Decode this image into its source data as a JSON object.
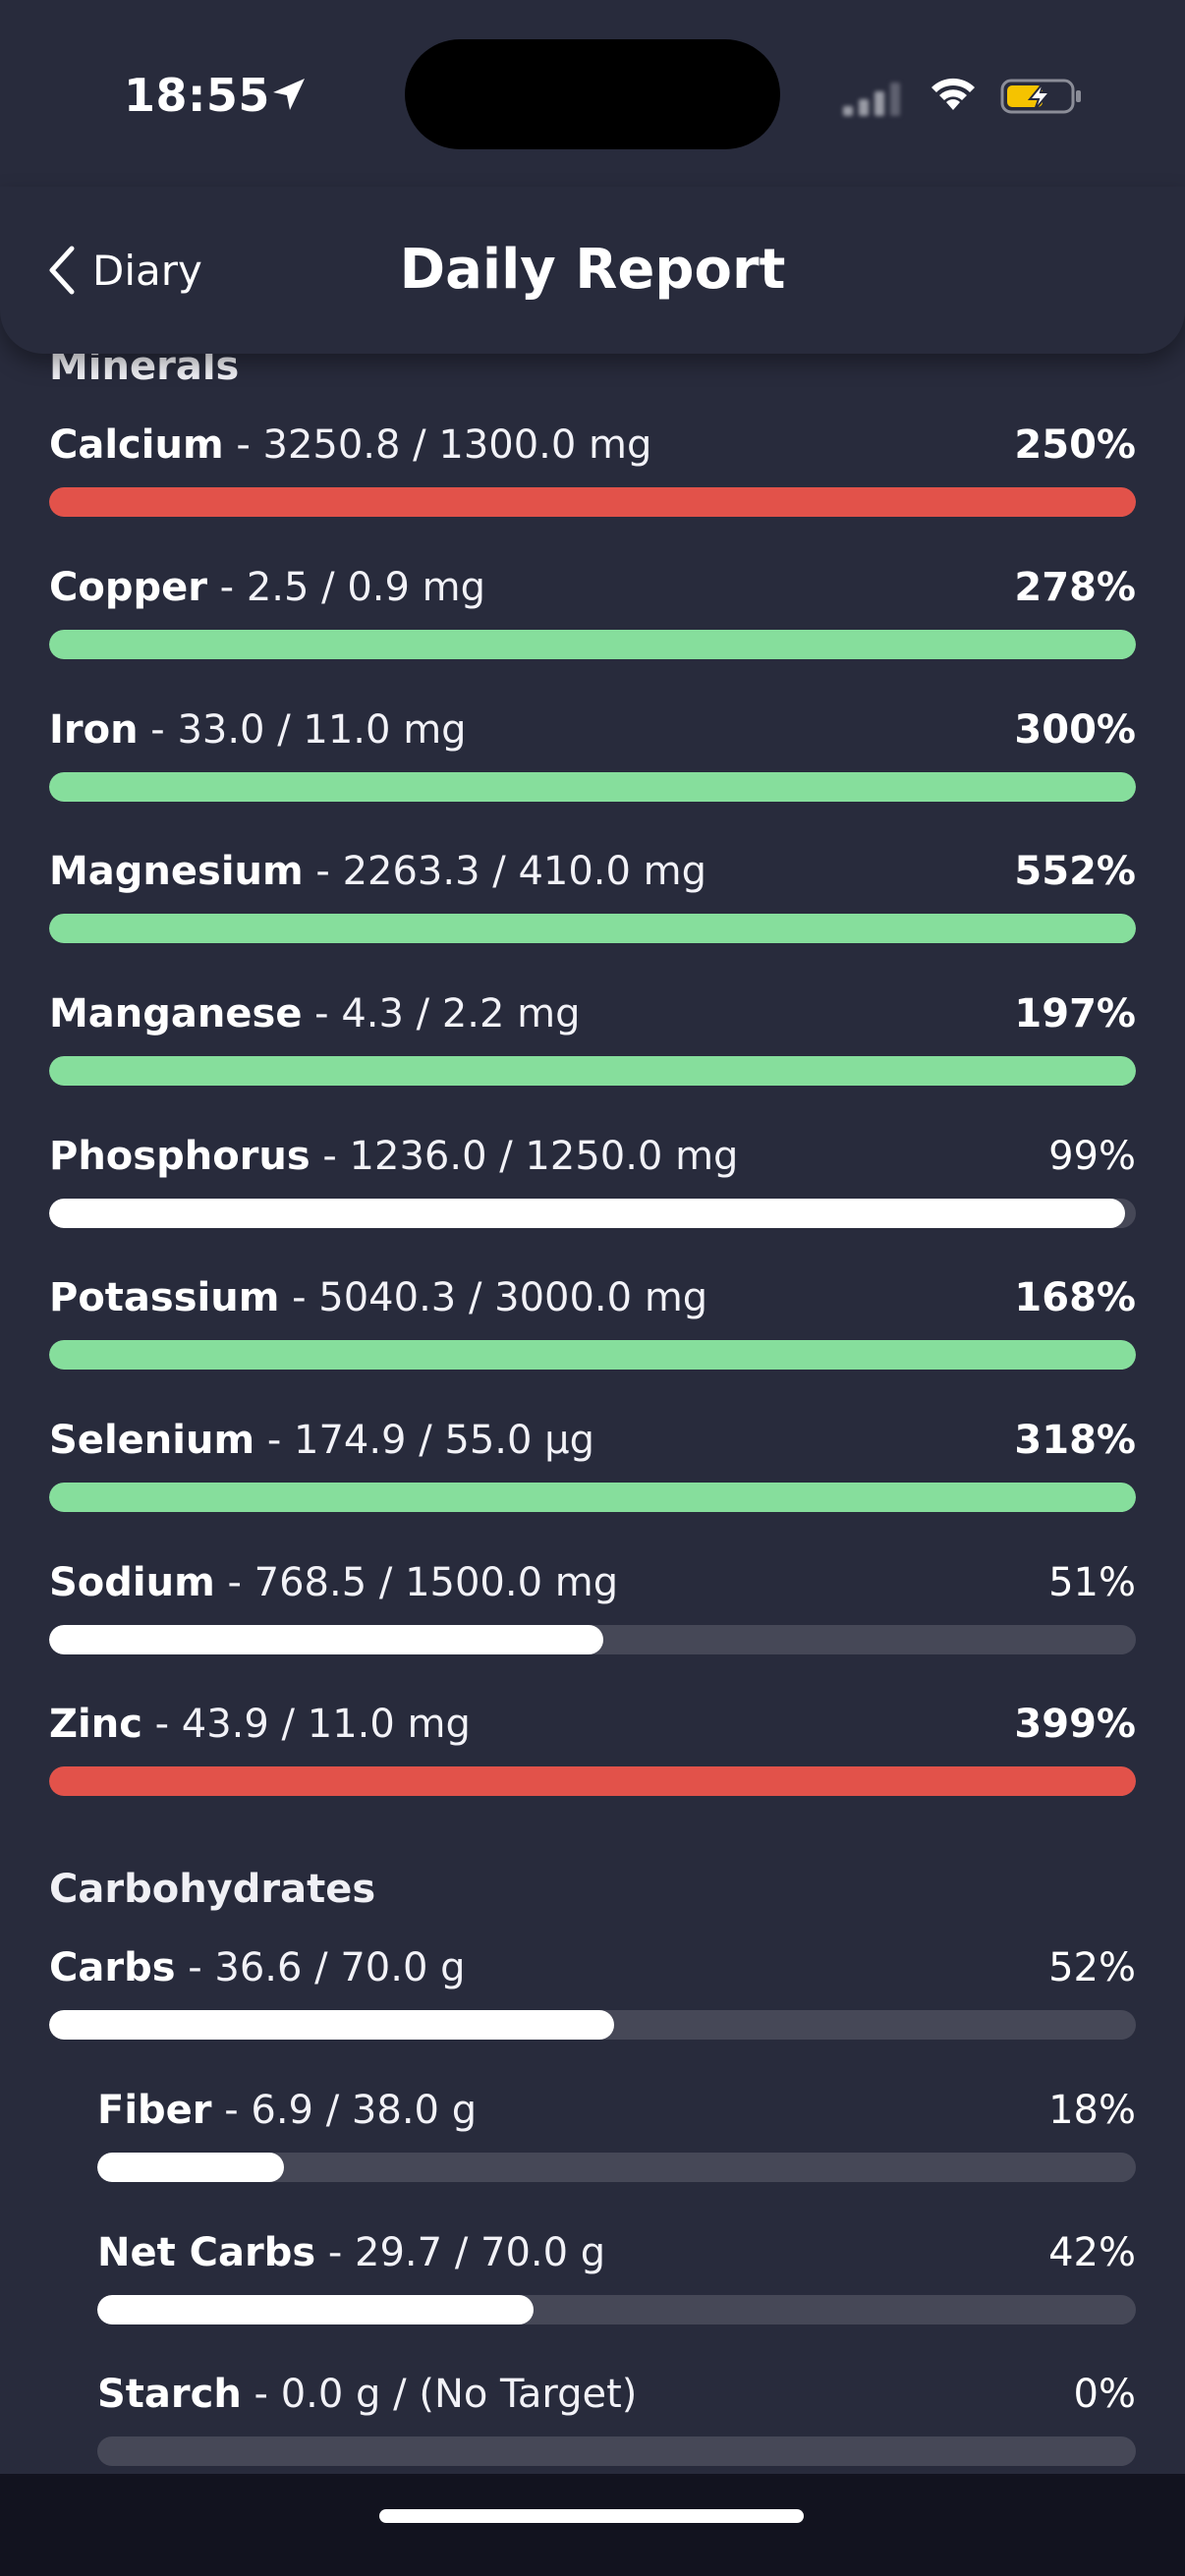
{
  "status_bar": {
    "time": "18:55"
  },
  "header": {
    "back_label": "Diary",
    "title": "Daily Report"
  },
  "colors": {
    "background": "#282b3c",
    "track": "#464857",
    "over_limit": "#e2524a",
    "above_target": "#86de9c",
    "below_target": "#ffffff",
    "battery_charge": "#f5c300"
  },
  "icons": {
    "back": "chevron-left-icon",
    "location": "location-arrow-icon",
    "signal": "cellular-signal-icon",
    "wifi": "wifi-icon",
    "battery": "battery-charging-icon"
  },
  "sections": [
    {
      "title": "Minerals",
      "rows": [
        {
          "name": "Calcium",
          "detail": " - 3250.8 / 1300.0 mg",
          "percent": "250%",
          "fill": 1.0,
          "status": "over_limit",
          "bold_pct": true,
          "indent": false
        },
        {
          "name": "Copper",
          "detail": " - 2.5 / 0.9 mg",
          "percent": "278%",
          "fill": 1.0,
          "status": "above_target",
          "bold_pct": true,
          "indent": false
        },
        {
          "name": "Iron",
          "detail": " - 33.0 / 11.0 mg",
          "percent": "300%",
          "fill": 1.0,
          "status": "above_target",
          "bold_pct": true,
          "indent": false
        },
        {
          "name": "Magnesium",
          "detail": " - 2263.3 / 410.0 mg",
          "percent": "552%",
          "fill": 1.0,
          "status": "above_target",
          "bold_pct": true,
          "indent": false
        },
        {
          "name": "Manganese",
          "detail": " - 4.3 / 2.2 mg",
          "percent": "197%",
          "fill": 1.0,
          "status": "above_target",
          "bold_pct": true,
          "indent": false
        },
        {
          "name": "Phosphorus",
          "detail": " - 1236.0 / 1250.0 mg",
          "percent": "99%",
          "fill": 0.99,
          "status": "below_target",
          "bold_pct": false,
          "indent": false
        },
        {
          "name": "Potassium",
          "detail": " - 5040.3 / 3000.0 mg",
          "percent": "168%",
          "fill": 1.0,
          "status": "above_target",
          "bold_pct": true,
          "indent": false
        },
        {
          "name": "Selenium",
          "detail": " - 174.9 / 55.0 µg",
          "percent": "318%",
          "fill": 1.0,
          "status": "above_target",
          "bold_pct": true,
          "indent": false
        },
        {
          "name": "Sodium",
          "detail": " - 768.5 / 1500.0 mg",
          "percent": "51%",
          "fill": 0.51,
          "status": "below_target",
          "bold_pct": false,
          "indent": false
        },
        {
          "name": "Zinc",
          "detail": " - 43.9 / 11.0 mg",
          "percent": "399%",
          "fill": 1.0,
          "status": "over_limit",
          "bold_pct": true,
          "indent": false
        }
      ]
    },
    {
      "title": "Carbohydrates",
      "rows": [
        {
          "name": "Carbs",
          "detail": " - 36.6 / 70.0 g",
          "percent": "52%",
          "fill": 0.52,
          "status": "below_target",
          "bold_pct": false,
          "indent": false
        },
        {
          "name": "Fiber",
          "detail": " - 6.9 / 38.0 g",
          "percent": "18%",
          "fill": 0.18,
          "status": "below_target",
          "bold_pct": false,
          "indent": true
        },
        {
          "name": "Net Carbs",
          "detail": " - 29.7 / 70.0 g",
          "percent": "42%",
          "fill": 0.42,
          "status": "below_target",
          "bold_pct": false,
          "indent": true
        },
        {
          "name": "Starch",
          "detail": " - 0.0 g / (No Target)",
          "percent": "0%",
          "fill": 0.0,
          "status": "below_target",
          "bold_pct": false,
          "indent": true
        }
      ]
    }
  ]
}
